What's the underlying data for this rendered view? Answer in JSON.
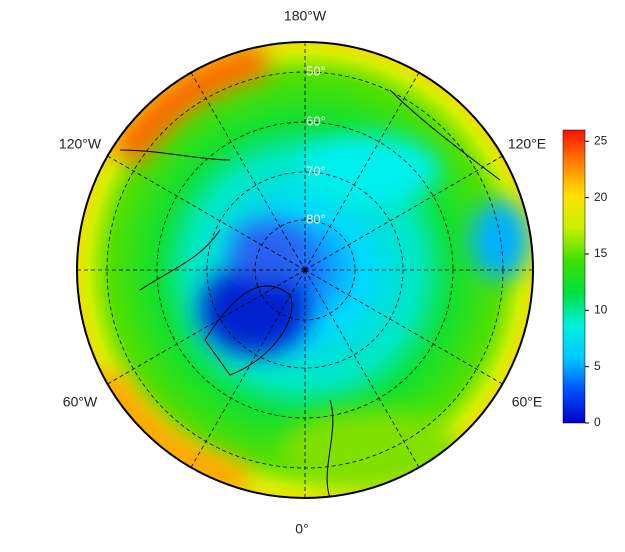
{
  "map": {
    "longitude_labels": [
      "180°W",
      "120°E",
      "60°E",
      "0°",
      "60°W",
      "120°W"
    ],
    "latitude_labels": [
      "50°",
      "60°",
      "70°",
      "80°"
    ],
    "colorbar": {
      "lim": [
        0,
        26
      ],
      "ticks": [
        0,
        5,
        10,
        15,
        20,
        25
      ],
      "colors": [
        "#0000c8",
        "#0050ff",
        "#00c8ff",
        "#00f0e0",
        "#00e040",
        "#40e000",
        "#c8f000",
        "#ffe000",
        "#ff8000",
        "#ff1000"
      ]
    }
  }
}
